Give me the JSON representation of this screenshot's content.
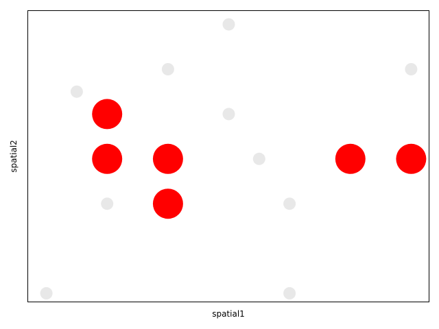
{
  "chart_data": {
    "type": "scatter",
    "xlabel": "spatial1",
    "ylabel": "spatial2",
    "xlim": [
      0.2,
      6.8
    ],
    "ylim": [
      -0.2,
      6.3
    ],
    "xticks": [],
    "yticks": [],
    "grid": false,
    "series": [
      {
        "role": "background",
        "color": "#e8e8e8",
        "size": "small",
        "points": [
          {
            "x": 0.5,
            "y": 0.0
          },
          {
            "x": 1.0,
            "y": 4.5
          },
          {
            "x": 1.5,
            "y": 2.0
          },
          {
            "x": 2.5,
            "y": 5.0
          },
          {
            "x": 3.5,
            "y": 6.0
          },
          {
            "x": 3.5,
            "y": 4.0
          },
          {
            "x": 4.0,
            "y": 3.0
          },
          {
            "x": 4.5,
            "y": 2.0
          },
          {
            "x": 4.5,
            "y": 0.0
          },
          {
            "x": 6.5,
            "y": 5.0
          }
        ]
      },
      {
        "role": "highlighted",
        "color": "#ff0000",
        "size": "large",
        "points": [
          {
            "x": 1.5,
            "y": 4.0
          },
          {
            "x": 1.5,
            "y": 3.0
          },
          {
            "x": 2.5,
            "y": 3.0
          },
          {
            "x": 2.5,
            "y": 2.0
          },
          {
            "x": 5.5,
            "y": 3.0
          },
          {
            "x": 6.5,
            "y": 3.0
          }
        ]
      }
    ]
  }
}
